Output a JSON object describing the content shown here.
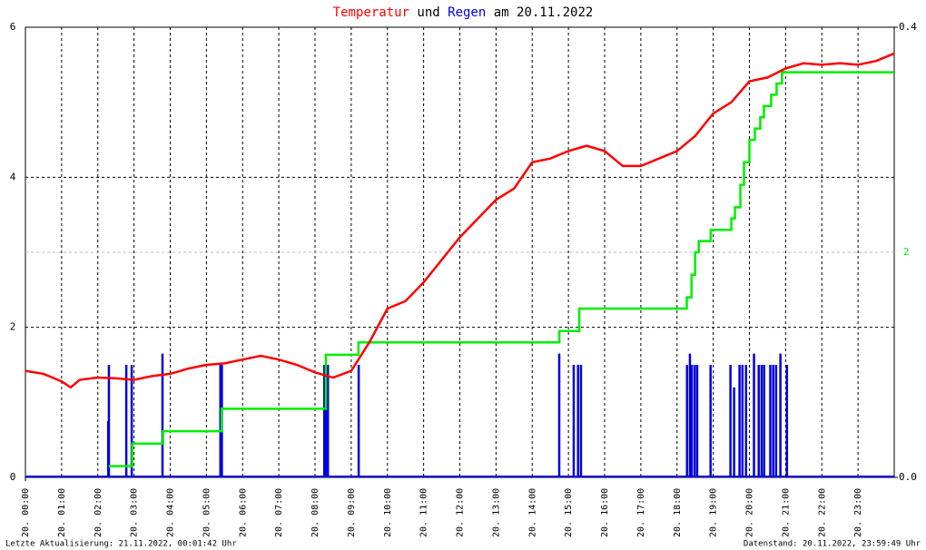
{
  "chart_data": {
    "type": "line",
    "title_joiner": "und",
    "title_suffix": "am 20.11.2022",
    "footer_left": "Letzte Aktualisierung: 21.11.2022, 00:01:42 Uhr",
    "footer_right": "Datenstand: 20.11.2022, 23:59:49 Uhr",
    "xlim": [
      0,
      24
    ],
    "xticks": [
      {
        "value": 0,
        "label": "20. 00:00"
      },
      {
        "value": 1,
        "label": "20. 01:00"
      },
      {
        "value": 2,
        "label": "20. 02:00"
      },
      {
        "value": 3,
        "label": "20. 03:00"
      },
      {
        "value": 4,
        "label": "20. 04:00"
      },
      {
        "value": 5,
        "label": "20. 05:00"
      },
      {
        "value": 6,
        "label": "20. 06:00"
      },
      {
        "value": 7,
        "label": "20. 07:00"
      },
      {
        "value": 8,
        "label": "20. 08:00"
      },
      {
        "value": 9,
        "label": "20. 09:00"
      },
      {
        "value": 10,
        "label": "20. 10:00"
      },
      {
        "value": 11,
        "label": "20. 11:00"
      },
      {
        "value": 12,
        "label": "20. 12:00"
      },
      {
        "value": 13,
        "label": "20. 13:00"
      },
      {
        "value": 14,
        "label": "20. 14:00"
      },
      {
        "value": 15,
        "label": "20. 15:00"
      },
      {
        "value": 16,
        "label": "20. 16:00"
      },
      {
        "value": 17,
        "label": "20. 17:00"
      },
      {
        "value": 18,
        "label": "20. 18:00"
      },
      {
        "value": 19,
        "label": "20. 19:00"
      },
      {
        "value": 20,
        "label": "20. 20:00"
      },
      {
        "value": 21,
        "label": "20. 21:00"
      },
      {
        "value": 22,
        "label": "20. 22:00"
      },
      {
        "value": 23,
        "label": "20. 23:00"
      }
    ],
    "ylim": [
      0,
      6
    ],
    "yticks": [
      0,
      2,
      4,
      6
    ],
    "y2lim": [
      0,
      0.4
    ],
    "y2ticks": [
      {
        "value": 0,
        "label": "0.0"
      },
      0.4
    ],
    "y3lim": [
      0,
      4
    ],
    "y3ticks": [
      2
    ],
    "grid": true,
    "series": [
      {
        "name": "Temperatur",
        "color": "#ff0000",
        "kind": "line",
        "axis": "y",
        "x": [
          0,
          0.5,
          1,
          1.25,
          1.5,
          2,
          2.5,
          3,
          3.5,
          4,
          4.5,
          5,
          5.5,
          6,
          6.5,
          7,
          7.5,
          8,
          8.5,
          9,
          9.5,
          10,
          10.5,
          11,
          11.5,
          12,
          12.5,
          13,
          13.5,
          14,
          14.5,
          15,
          15.5,
          16,
          16.5,
          17,
          17.5,
          18,
          18.5,
          19,
          19.5,
          20,
          20.5,
          21,
          21.5,
          22,
          22.5,
          23,
          23.5,
          24
        ],
        "values": [
          1.42,
          1.38,
          1.28,
          1.2,
          1.3,
          1.33,
          1.32,
          1.3,
          1.35,
          1.38,
          1.45,
          1.5,
          1.52,
          1.57,
          1.62,
          1.57,
          1.5,
          1.4,
          1.33,
          1.42,
          1.8,
          2.25,
          2.35,
          2.6,
          2.9,
          3.2,
          3.45,
          3.7,
          3.85,
          4.2,
          4.25,
          4.35,
          4.42,
          4.35,
          4.15,
          4.15,
          4.25,
          4.35,
          4.55,
          4.85,
          5.0,
          5.28,
          5.33,
          5.45,
          5.52,
          5.5,
          5.52,
          5.5,
          5.55,
          5.65
        ]
      },
      {
        "name": "Regen",
        "color": "#0000dd",
        "kind": "bar",
        "axis": "y2",
        "x": [
          2.28,
          2.3,
          2.78,
          2.93,
          3.78,
          5.38,
          5.42,
          8.25,
          8.3,
          8.35,
          9.2,
          14.74,
          15.14,
          15.26,
          15.34,
          18.27,
          18.35,
          18.4,
          18.48,
          18.55,
          18.92,
          19.47,
          19.57,
          19.72,
          19.8,
          19.9,
          20.12,
          20.25,
          20.33,
          20.4,
          20.57,
          20.65,
          20.73,
          20.85,
          21.03
        ],
        "values": [
          0.05,
          0.1,
          0.1,
          0.1,
          0.11,
          0.1,
          0.1,
          0.1,
          0.1,
          0.1,
          0.1,
          0.11,
          0.1,
          0.1,
          0.1,
          0.1,
          0.11,
          0.1,
          0.1,
          0.1,
          0.1,
          0.1,
          0.08,
          0.1,
          0.1,
          0.1,
          0.11,
          0.1,
          0.1,
          0.1,
          0.1,
          0.1,
          0.1,
          0.11,
          0.1
        ]
      },
      {
        "color": "#00ee00",
        "kind": "step",
        "axis": "y3",
        "x": [
          2.3,
          2.95,
          3.8,
          5.42,
          8.3,
          9.2,
          14.75,
          15.3,
          18.27,
          18.4,
          18.5,
          18.6,
          18.93,
          19.5,
          19.6,
          19.75,
          19.85,
          20.0,
          20.15,
          20.3,
          20.4,
          20.6,
          20.75,
          20.9,
          24
        ],
        "values": [
          0.1,
          0.3,
          0.41,
          0.61,
          1.09,
          1.2,
          1.3,
          1.5,
          1.6,
          1.8,
          2.0,
          2.1,
          2.2,
          2.3,
          2.4,
          2.6,
          2.8,
          3.0,
          3.1,
          3.2,
          3.3,
          3.4,
          3.5,
          3.6,
          3.6
        ]
      }
    ]
  }
}
